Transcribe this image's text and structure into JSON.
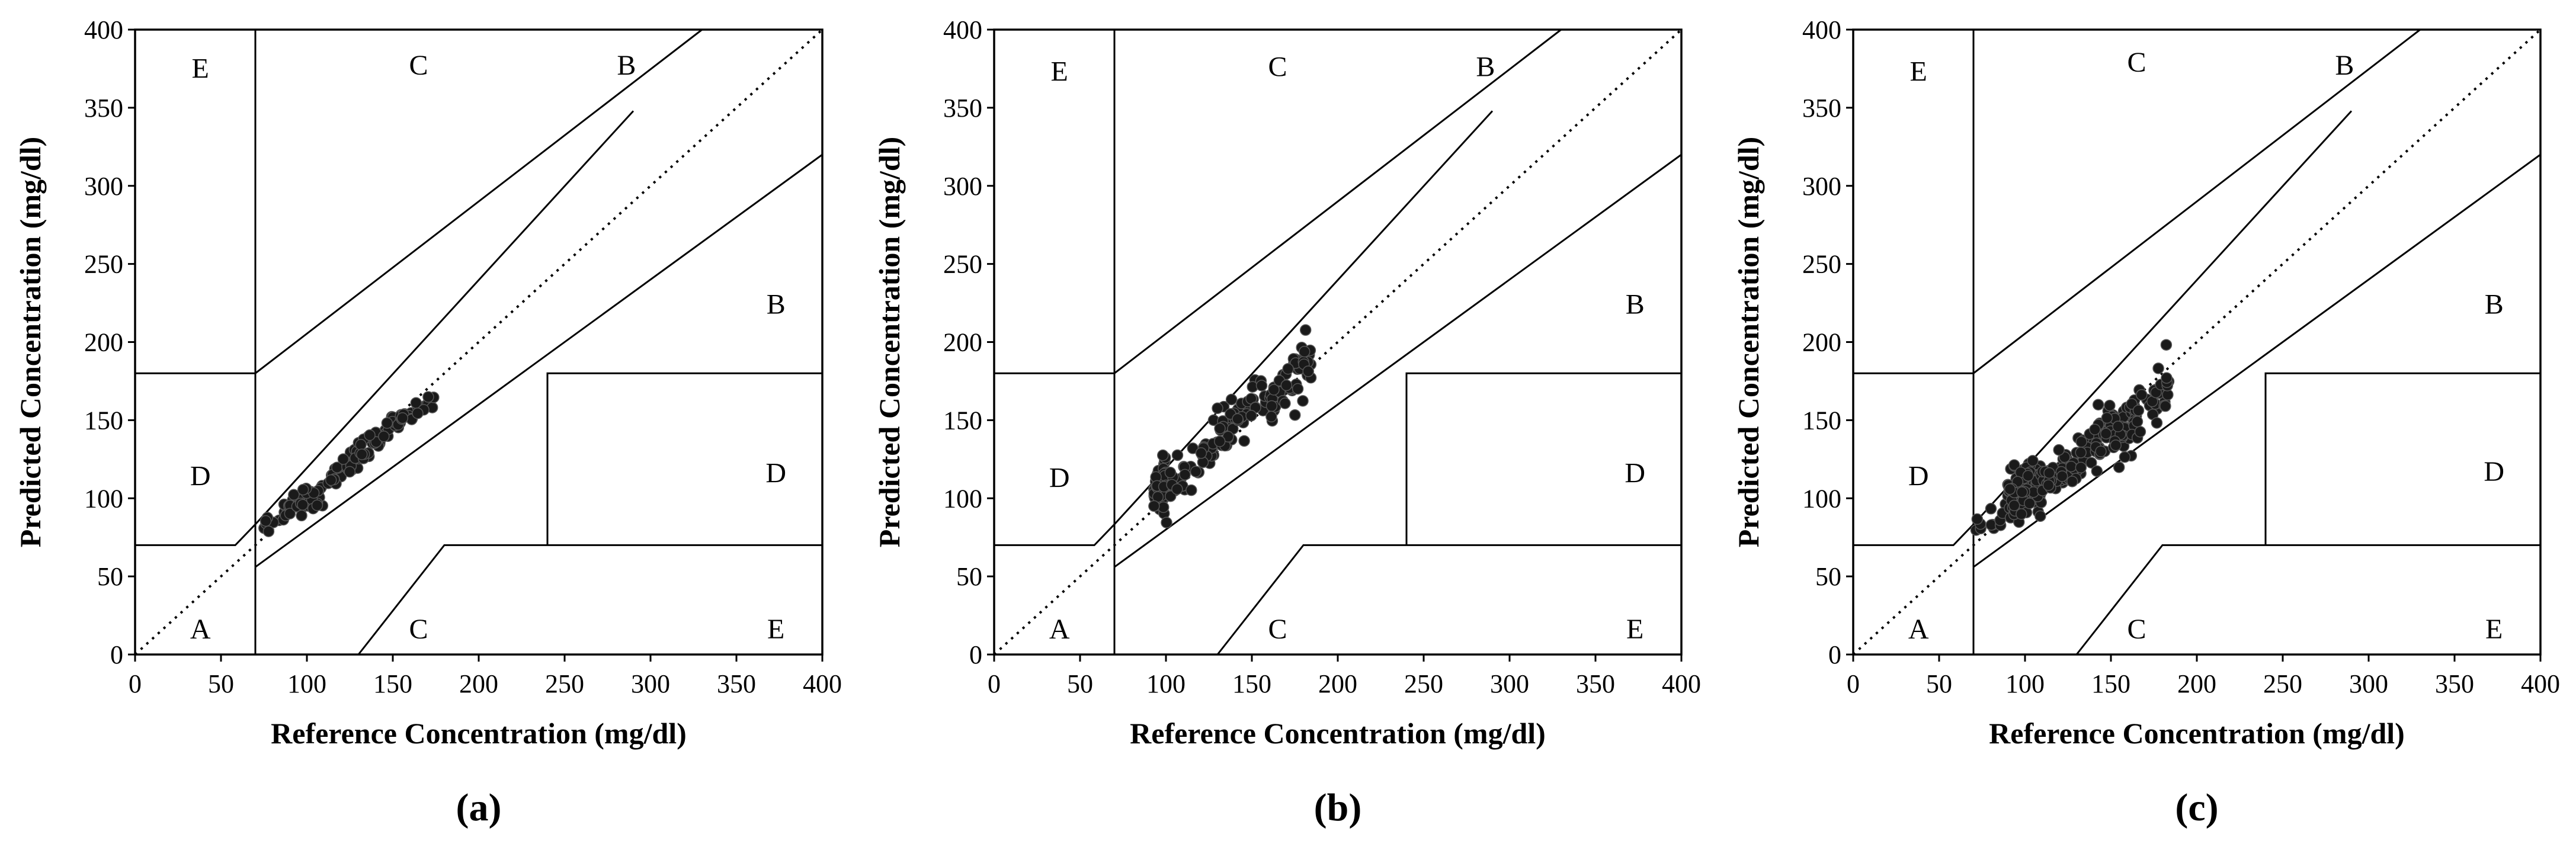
{
  "chart_data": [
    {
      "type": "scatter",
      "panel": "a",
      "caption": "(a)",
      "title": "",
      "xlabel": "Reference Concentration (mg/dl)",
      "ylabel": "Predicted Concentration (mg/dl)",
      "xlim": [
        0,
        400
      ],
      "ylim": [
        0,
        400
      ],
      "xticks": [
        "0",
        "50",
        "100",
        "150",
        "200",
        "250",
        "300",
        "350",
        "400"
      ],
      "yticks": [
        "0",
        "50",
        "100",
        "150",
        "200",
        "250",
        "300",
        "350",
        "400"
      ],
      "zone_labels": [
        {
          "text": "E",
          "x": 38,
          "y": 376
        },
        {
          "text": "C",
          "x": 165,
          "y": 378
        },
        {
          "text": "B",
          "x": 286,
          "y": 378
        },
        {
          "text": "B",
          "x": 373,
          "y": 225
        },
        {
          "text": "D",
          "x": 38,
          "y": 115
        },
        {
          "text": "D",
          "x": 373,
          "y": 117
        },
        {
          "text": "A",
          "x": 38,
          "y": 17
        },
        {
          "text": "C",
          "x": 165,
          "y": 17
        },
        {
          "text": "E",
          "x": 373,
          "y": 17
        }
      ],
      "point_clusters": [
        {
          "n": 14,
          "x": [
            72,
            90
          ],
          "slope": 0.95,
          "intercept": 10,
          "spread": 6
        },
        {
          "n": 40,
          "x": [
            90,
            110
          ],
          "slope": 0.3,
          "intercept": 70,
          "spread": 7
        },
        {
          "n": 30,
          "x": [
            110,
            130
          ],
          "slope": 1.1,
          "intercept": -15,
          "spread": 6
        },
        {
          "n": 38,
          "x": [
            130,
            155
          ],
          "slope": 1.05,
          "intercept": -10,
          "spread": 7
        },
        {
          "n": 18,
          "x": [
            155,
            175
          ],
          "slope": 0.8,
          "intercept": 25,
          "spread": 4
        }
      ]
    },
    {
      "type": "scatter",
      "panel": "b",
      "caption": "(b)",
      "title": "",
      "xlabel": "Reference Concentration (mg/dl)",
      "ylabel": "Predicted Concentration (mg/dl)",
      "xlim": [
        0,
        400
      ],
      "ylim": [
        0,
        400
      ],
      "xticks": [
        "0",
        "50",
        "100",
        "150",
        "200",
        "250",
        "300",
        "350",
        "400"
      ],
      "yticks": [
        "0",
        "50",
        "100",
        "150",
        "200",
        "250",
        "300",
        "350",
        "400"
      ],
      "zone_labels": [
        {
          "text": "E",
          "x": 38,
          "y": 374
        },
        {
          "text": "C",
          "x": 165,
          "y": 377
        },
        {
          "text": "B",
          "x": 286,
          "y": 377
        },
        {
          "text": "B",
          "x": 373,
          "y": 225
        },
        {
          "text": "D",
          "x": 38,
          "y": 114
        },
        {
          "text": "D",
          "x": 373,
          "y": 117
        },
        {
          "text": "A",
          "x": 38,
          "y": 17
        },
        {
          "text": "C",
          "x": 165,
          "y": 17
        },
        {
          "text": "E",
          "x": 373,
          "y": 17
        }
      ],
      "point_clusters": [
        {
          "n": 55,
          "x": [
            93,
            100
          ],
          "slope": 0.3,
          "intercept": 80,
          "spread": 14
        },
        {
          "n": 40,
          "x": [
            100,
            130
          ],
          "slope": 1.0,
          "intercept": 5,
          "spread": 10
        },
        {
          "n": 45,
          "x": [
            130,
            160
          ],
          "slope": 1.1,
          "intercept": -5,
          "spread": 12
        },
        {
          "n": 50,
          "x": [
            160,
            185
          ],
          "slope": 1.1,
          "intercept": -15,
          "spread": 14
        }
      ]
    },
    {
      "type": "scatter",
      "panel": "c",
      "caption": "(c)",
      "title": "",
      "xlabel": "Reference Concentration (mg/dl)",
      "ylabel": "Predicted Concentration (mg/dl)",
      "xlim": [
        0,
        400
      ],
      "ylim": [
        0,
        400
      ],
      "xticks": [
        "0",
        "50",
        "100",
        "150",
        "200",
        "250",
        "300",
        "350",
        "400"
      ],
      "yticks": [
        "0",
        "50",
        "100",
        "150",
        "200",
        "250",
        "300",
        "350",
        "400"
      ],
      "zone_labels": [
        {
          "text": "E",
          "x": 38,
          "y": 374
        },
        {
          "text": "C",
          "x": 165,
          "y": 380
        },
        {
          "text": "B",
          "x": 286,
          "y": 378
        },
        {
          "text": "B",
          "x": 373,
          "y": 225
        },
        {
          "text": "D",
          "x": 38,
          "y": 115
        },
        {
          "text": "D",
          "x": 373,
          "y": 118
        },
        {
          "text": "A",
          "x": 38,
          "y": 17
        },
        {
          "text": "C",
          "x": 165,
          "y": 17
        },
        {
          "text": "E",
          "x": 373,
          "y": 17
        }
      ],
      "point_clusters": [
        {
          "n": 12,
          "x": [
            70,
            90
          ],
          "slope": 0.5,
          "intercept": 45,
          "spread": 8
        },
        {
          "n": 110,
          "x": [
            90,
            110
          ],
          "slope": 0.4,
          "intercept": 65,
          "spread": 13
        },
        {
          "n": 70,
          "x": [
            110,
            140
          ],
          "slope": 0.8,
          "intercept": 20,
          "spread": 12
        },
        {
          "n": 70,
          "x": [
            140,
            165
          ],
          "slope": 0.8,
          "intercept": 20,
          "spread": 14
        },
        {
          "n": 30,
          "x": [
            165,
            185
          ],
          "slope": 1.0,
          "intercept": -10,
          "spread": 18
        }
      ]
    }
  ]
}
